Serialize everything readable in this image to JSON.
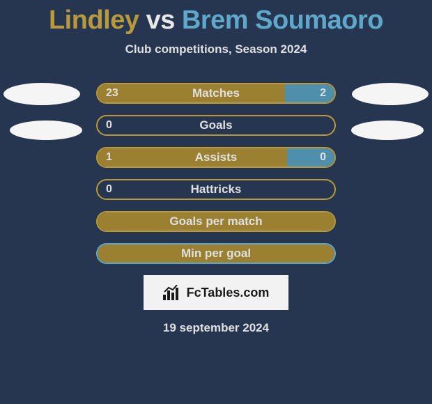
{
  "title": {
    "player1": "Lindley",
    "vs": "vs",
    "player2": "Brem Soumaoro",
    "player1_color": "#b89a3a",
    "vs_color": "#e8e8e8",
    "player2_color": "#5fa8c9"
  },
  "subtitle": "Club competitions, Season 2024",
  "colors": {
    "background": "#263651",
    "border_p1": "#b89a3a",
    "fill_p1": "#9a8030",
    "border_p2": "#5fa8c9",
    "fill_p2": "#4f8fab",
    "text": "#e0e0e0",
    "watermark_bg": "#f2f2f2"
  },
  "stats": [
    {
      "label": "Matches",
      "v1": "23",
      "v2": "2",
      "p1_pct": 79,
      "p2_pct": 21,
      "show_v1": true,
      "show_v2": true,
      "border": "p1"
    },
    {
      "label": "Goals",
      "v1": "0",
      "v2": "",
      "p1_pct": 0,
      "p2_pct": 0,
      "show_v1": true,
      "show_v2": false,
      "border": "p1"
    },
    {
      "label": "Assists",
      "v1": "1",
      "v2": "0",
      "p1_pct": 80,
      "p2_pct": 20,
      "show_v1": true,
      "show_v2": true,
      "border": "p1"
    },
    {
      "label": "Hattricks",
      "v1": "0",
      "v2": "",
      "p1_pct": 0,
      "p2_pct": 0,
      "show_v1": true,
      "show_v2": false,
      "border": "p1"
    },
    {
      "label": "Goals per match",
      "v1": "",
      "v2": "",
      "p1_pct": 100,
      "p2_pct": 0,
      "show_v1": false,
      "show_v2": false,
      "border": "p1"
    },
    {
      "label": "Min per goal",
      "v1": "",
      "v2": "",
      "p1_pct": 100,
      "p2_pct": 0,
      "show_v1": false,
      "show_v2": false,
      "border": "p2"
    }
  ],
  "watermark": "FcTables.com",
  "date": "19 september 2024"
}
